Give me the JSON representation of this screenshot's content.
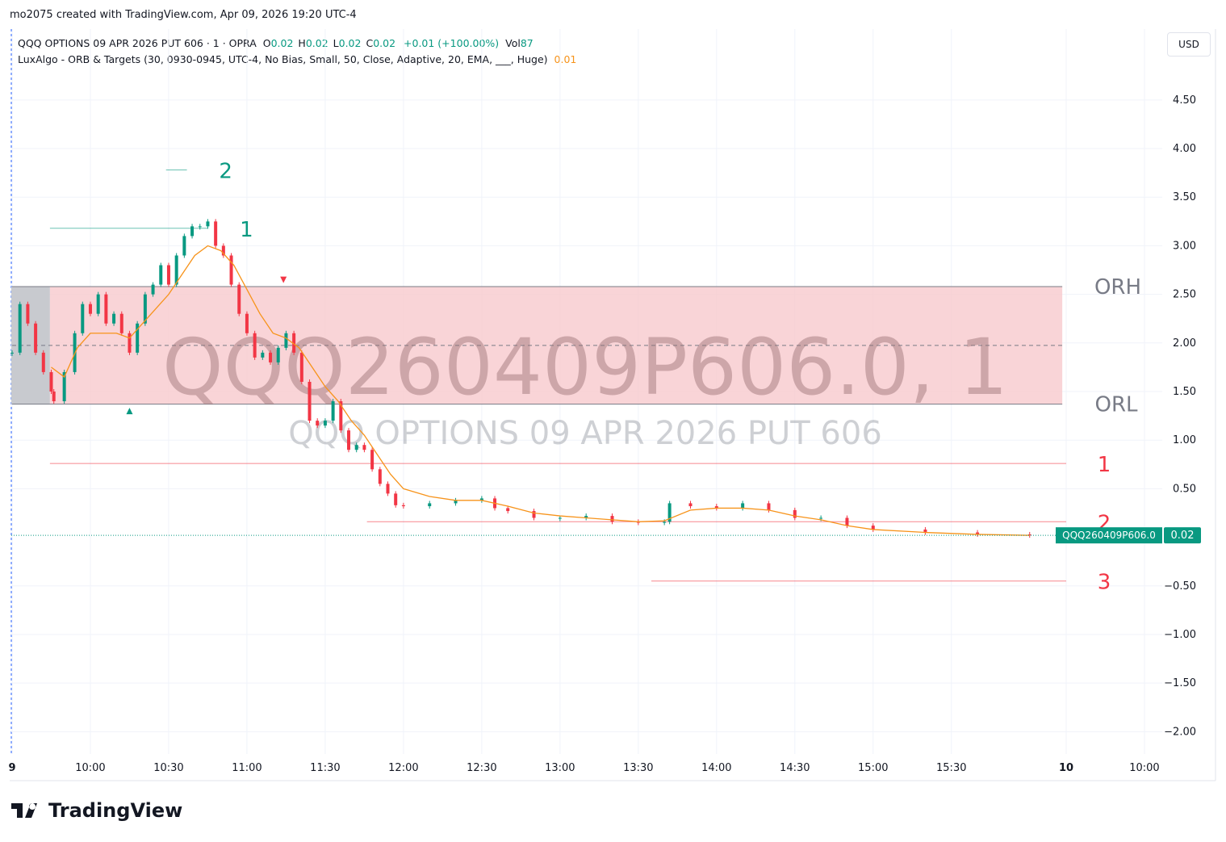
{
  "header": {
    "credit": "mo2075 created with TradingView.com, Apr 09, 2026 19:20 UTC-4",
    "footer": "TradingView",
    "currency": "USD"
  },
  "legend": {
    "symbol": "QQQ OPTIONS 09 APR 2026 PUT 606 · 1 · OPRA",
    "ohlc": [
      {
        "label": "O",
        "value": 0.02
      },
      {
        "label": "H",
        "value": 0.02
      },
      {
        "label": "L",
        "value": 0.02
      },
      {
        "label": "C",
        "value": 0.02
      }
    ],
    "change": "+0.01 (+100.00%)",
    "vol_label": "Vol",
    "vol": 87,
    "indicator": "LuxAlgo - ORB & Targets (30, 0930-0945, UTC-4, No Bias, Small, 50, Close, Adaptive, 20, EMA, ___, Huge)",
    "indicator_value": 0.01
  },
  "chart_data": {
    "type": "candlestick",
    "watermark": "QQQ260409P606.0, 1",
    "watermark_sub": "QQQ OPTIONS 09 APR 2026 PUT 606",
    "price_label": {
      "name": "QQQ260409P606.0",
      "value": 0.02
    },
    "xlim": [
      0,
      441
    ],
    "ylim": [
      -2.23,
      5.23
    ],
    "xticks": [
      {
        "value": 0,
        "label": "9"
      },
      {
        "value": 30,
        "label": "10:00"
      },
      {
        "value": 60,
        "label": "10:30"
      },
      {
        "value": 90,
        "label": "11:00"
      },
      {
        "value": 120,
        "label": "11:30"
      },
      {
        "value": 150,
        "label": "12:00"
      },
      {
        "value": 180,
        "label": "12:30"
      },
      {
        "value": 210,
        "label": "13:00"
      },
      {
        "value": 240,
        "label": "13:30"
      },
      {
        "value": 270,
        "label": "14:00"
      },
      {
        "value": 300,
        "label": "14:30"
      },
      {
        "value": 330,
        "label": "15:00"
      },
      {
        "value": 360,
        "label": "15:30"
      },
      {
        "value": 404,
        "label": "10"
      },
      {
        "value": 434,
        "label": "10:00"
      }
    ],
    "yticks": [
      {
        "value": 4.5,
        "label": "4.50"
      },
      {
        "value": 4,
        "label": "4.00"
      },
      {
        "value": 3.5,
        "label": "3.50"
      },
      {
        "value": 3,
        "label": "3.00"
      },
      {
        "value": 2.5,
        "label": "2.50"
      },
      {
        "value": 2,
        "label": "2.00"
      },
      {
        "value": 1.5,
        "label": "1.50"
      },
      {
        "value": 1,
        "label": "1.00"
      },
      {
        "value": 0.5,
        "label": "0.50"
      },
      {
        "value": -0.5,
        "label": "−0.50"
      },
      {
        "value": -1,
        "label": "−1.00"
      },
      {
        "value": -1.5,
        "label": "−1.50"
      },
      {
        "value": -2,
        "label": "−2.00"
      }
    ],
    "grid": true,
    "range": {
      "high": 2.58,
      "low": 1.37,
      "mid": 1.975,
      "high_label": "ORH",
      "low_label": "ORL",
      "x": [
        0,
        402.5
      ],
      "build_x": [
        0,
        14.5
      ]
    },
    "targets": [
      {
        "label": "1",
        "value": 3.18,
        "x": [
          14.5,
          75
        ],
        "color": "#089981"
      },
      {
        "label": "2",
        "value": 3.78,
        "x": [
          59,
          67
        ],
        "color": "#089981"
      },
      {
        "label": "1",
        "value": 0.76,
        "x": [
          14.5,
          404
        ],
        "color": "#f23645"
      },
      {
        "label": "2",
        "value": 0.16,
        "x": [
          136,
          404
        ],
        "color": "#f23645"
      },
      {
        "label": "3",
        "value": -0.45,
        "x": [
          245,
          404
        ],
        "color": "#f23645"
      }
    ],
    "series": [
      {
        "color": "#f23645",
        "x": [
          0,
          3,
          6,
          9,
          12,
          15,
          16,
          20,
          24,
          27,
          30,
          33,
          36,
          39,
          42,
          45,
          48,
          51,
          54,
          57,
          60,
          63,
          66,
          69,
          72,
          75,
          78,
          81,
          84,
          87,
          90,
          93,
          96,
          99,
          102,
          105,
          108,
          111,
          114,
          117,
          120,
          123,
          126,
          129,
          132,
          135,
          138,
          141,
          144,
          147,
          150,
          160,
          170,
          180,
          185,
          190,
          200,
          210,
          220,
          230,
          240,
          250,
          252,
          260,
          270,
          280,
          290,
          300,
          310,
          320,
          330,
          350,
          370,
          390
        ],
        "values": [
          1.9,
          2.4,
          2.2,
          1.9,
          1.7,
          1.5,
          1.4,
          1.7,
          2.1,
          2.4,
          2.3,
          2.5,
          2.2,
          2.3,
          2.1,
          1.9,
          2.2,
          2.5,
          2.6,
          2.8,
          2.6,
          2.9,
          3.1,
          3.2,
          3.2,
          3.25,
          3.0,
          2.9,
          2.6,
          2.3,
          2.1,
          1.85,
          1.9,
          1.8,
          1.95,
          2.1,
          1.9,
          1.6,
          1.2,
          1.15,
          1.2,
          1.4,
          1.1,
          0.9,
          0.95,
          0.9,
          0.7,
          0.55,
          0.45,
          0.33,
          0.32,
          0.35,
          0.38,
          0.4,
          0.3,
          0.27,
          0.2,
          0.2,
          0.22,
          0.16,
          0.15,
          0.16,
          0.35,
          0.32,
          0.3,
          0.35,
          0.28,
          0.2,
          0.2,
          0.12,
          0.08,
          0.05,
          0.03,
          0.02
        ]
      },
      {
        "color": "#f7931a",
        "x": [
          15,
          20,
          25,
          30,
          40,
          45,
          50,
          60,
          65,
          70,
          75,
          80,
          85,
          90,
          95,
          100,
          105,
          110,
          115,
          120,
          125,
          130,
          135,
          140,
          145,
          150,
          160,
          170,
          180,
          190,
          200,
          210,
          220,
          240,
          250,
          260,
          270,
          280,
          290,
          300,
          310,
          320,
          330,
          350,
          370,
          390
        ],
        "values": [
          1.75,
          1.65,
          1.95,
          2.1,
          2.1,
          2.05,
          2.2,
          2.5,
          2.7,
          2.9,
          3.0,
          2.95,
          2.8,
          2.55,
          2.3,
          2.1,
          2.05,
          1.95,
          1.75,
          1.55,
          1.4,
          1.2,
          1.05,
          0.85,
          0.65,
          0.5,
          0.42,
          0.38,
          0.38,
          0.32,
          0.25,
          0.22,
          0.2,
          0.16,
          0.17,
          0.28,
          0.3,
          0.3,
          0.28,
          0.22,
          0.18,
          0.12,
          0.08,
          0.05,
          0.03,
          0.02
        ]
      }
    ],
    "signals": [
      {
        "x": 45,
        "value": 1.3,
        "color": "#089981",
        "dir": "up"
      },
      {
        "x": 104,
        "value": 2.65,
        "color": "#f23645",
        "dir": "down"
      }
    ]
  }
}
